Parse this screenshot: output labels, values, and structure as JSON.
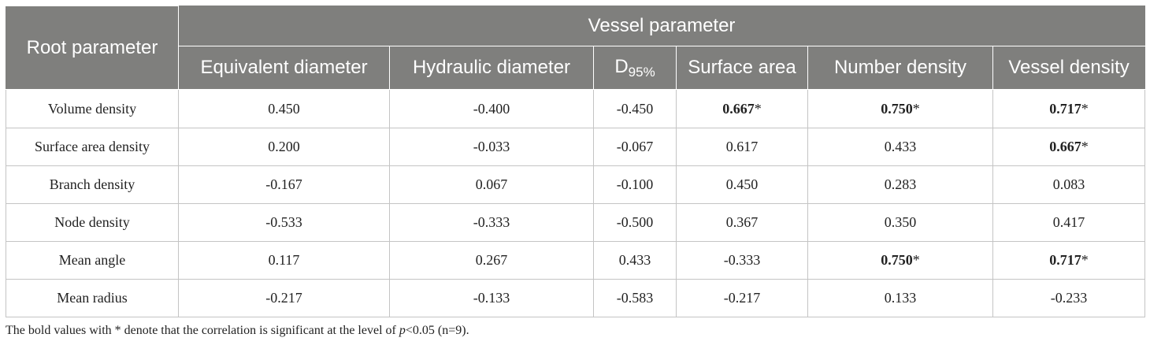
{
  "table": {
    "root_header": "Root parameter",
    "group_header": "Vessel parameter",
    "columns": [
      {
        "label": "Equivalent diameter"
      },
      {
        "label": "Hydraulic diameter"
      },
      {
        "label": "D",
        "subscript": "95%"
      },
      {
        "label": "Surface area"
      },
      {
        "label": "Number density"
      },
      {
        "label": "Vessel density"
      }
    ],
    "rows": [
      {
        "label": "Volume density",
        "cells": [
          {
            "value": "0.450",
            "mark": ""
          },
          {
            "value": "-0.400",
            "mark": ""
          },
          {
            "value": "-0.450",
            "mark": ""
          },
          {
            "value": "0.667",
            "mark": "*"
          },
          {
            "value": "0.750",
            "mark": "*"
          },
          {
            "value": "0.717",
            "mark": "*"
          }
        ]
      },
      {
        "label": "Surface area density",
        "cells": [
          {
            "value": "0.200",
            "mark": ""
          },
          {
            "value": "-0.033",
            "mark": ""
          },
          {
            "value": "-0.067",
            "mark": ""
          },
          {
            "value": "0.617",
            "mark": ""
          },
          {
            "value": "0.433",
            "mark": ""
          },
          {
            "value": "0.667",
            "mark": "*"
          }
        ]
      },
      {
        "label": "Branch density",
        "cells": [
          {
            "value": "-0.167",
            "mark": ""
          },
          {
            "value": "0.067",
            "mark": ""
          },
          {
            "value": "-0.100",
            "mark": ""
          },
          {
            "value": "0.450",
            "mark": ""
          },
          {
            "value": "0.283",
            "mark": ""
          },
          {
            "value": "0.083",
            "mark": ""
          }
        ]
      },
      {
        "label": "Node density",
        "cells": [
          {
            "value": "-0.533",
            "mark": ""
          },
          {
            "value": "-0.333",
            "mark": ""
          },
          {
            "value": "-0.500",
            "mark": ""
          },
          {
            "value": "0.367",
            "mark": ""
          },
          {
            "value": "0.350",
            "mark": ""
          },
          {
            "value": "0.417",
            "mark": ""
          }
        ]
      },
      {
        "label": "Mean angle",
        "cells": [
          {
            "value": "0.117",
            "mark": ""
          },
          {
            "value": "0.267",
            "mark": ""
          },
          {
            "value": "0.433",
            "mark": ""
          },
          {
            "value": "-0.333",
            "mark": ""
          },
          {
            "value": "0.750",
            "mark": "*"
          },
          {
            "value": "0.717",
            "mark": "*"
          }
        ]
      },
      {
        "label": "Mean radius",
        "cells": [
          {
            "value": "-0.217",
            "mark": ""
          },
          {
            "value": "-0.133",
            "mark": ""
          },
          {
            "value": "-0.583",
            "mark": ""
          },
          {
            "value": "-0.217",
            "mark": ""
          },
          {
            "value": "0.133",
            "mark": ""
          },
          {
            "value": "-0.233",
            "mark": ""
          }
        ]
      }
    ]
  },
  "footnote": {
    "before": "The bold values with * denote that the correlation is significant at the level of ",
    "italic": "p",
    "after": "<0.05 (n=9)."
  },
  "colors": {
    "header_bg": "#7f7f7d",
    "header_text": "#ffffff",
    "grid_line": "#c4c4c4"
  }
}
